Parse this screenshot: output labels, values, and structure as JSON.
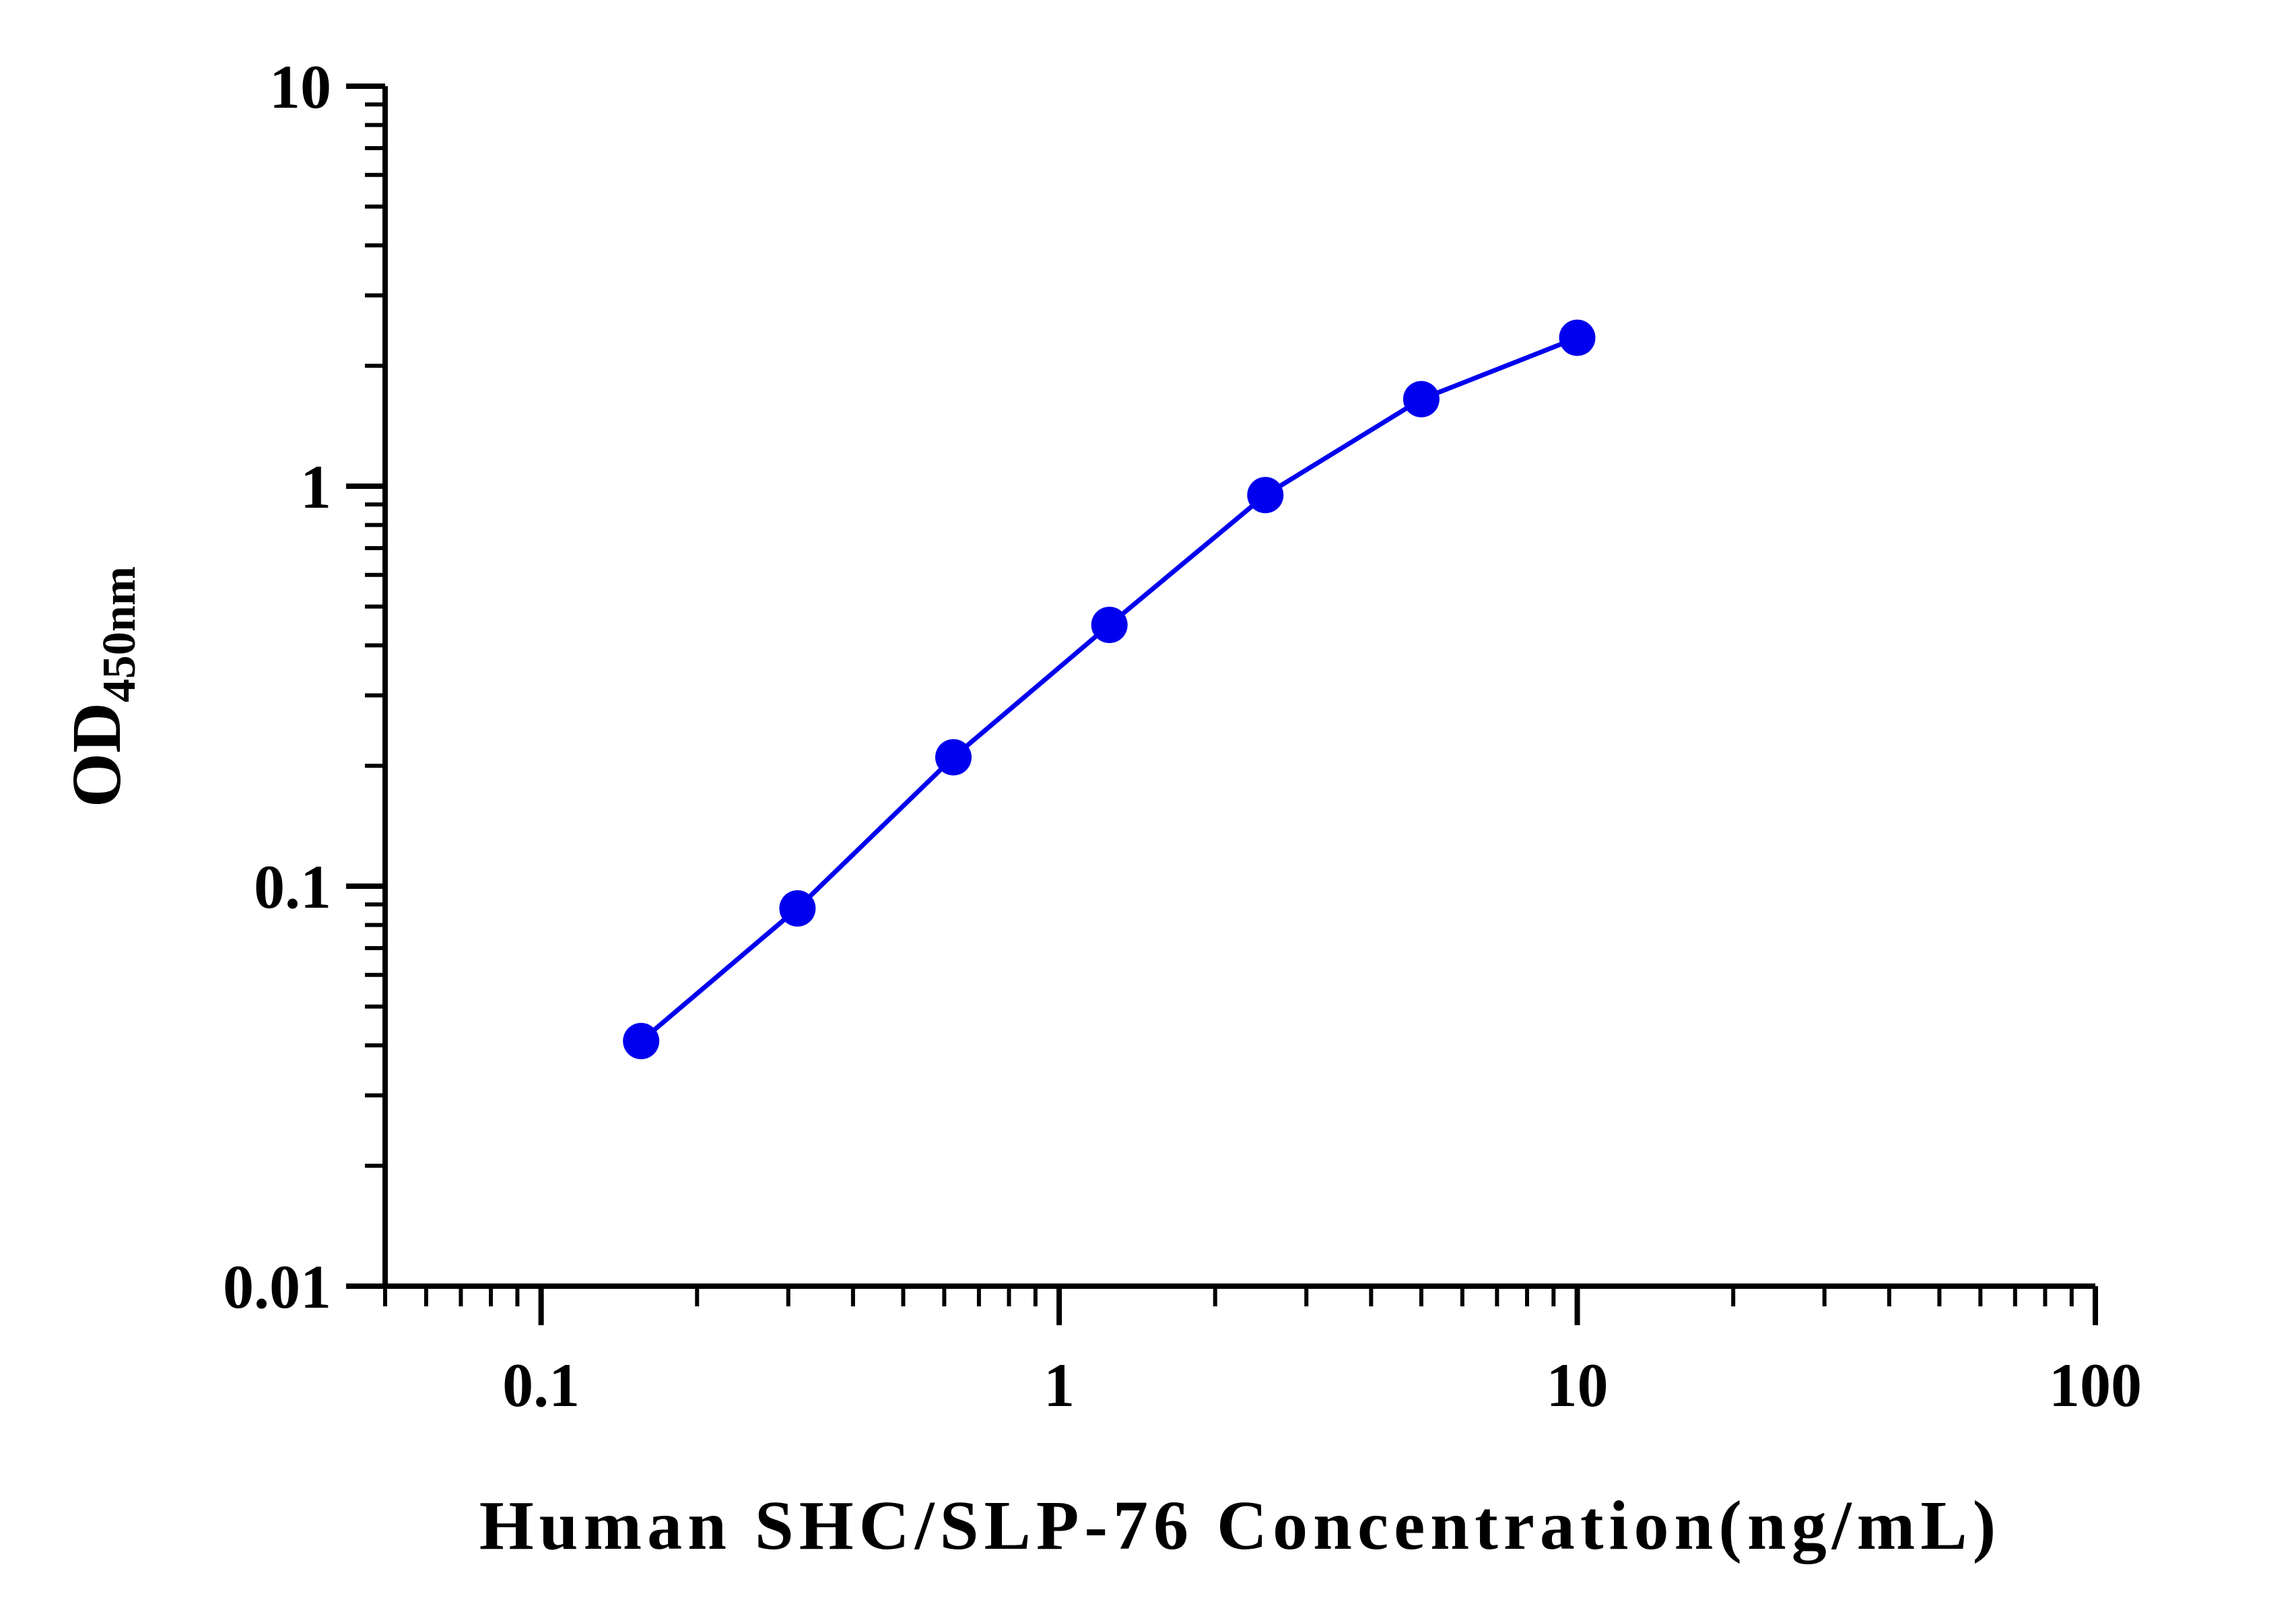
{
  "chart_data": {
    "type": "line",
    "title": "",
    "xlabel": "Human SHC/SLP-76 Concentration(ng/mL)",
    "ylabel": {
      "main": "OD",
      "subscript": "450nm"
    },
    "x_scale": "log",
    "y_scale": "log",
    "xlim": [
      0.05,
      100
    ],
    "ylim": [
      0.01,
      10
    ],
    "x_ticks": [
      {
        "value": 0.1,
        "label": "0.1"
      },
      {
        "value": 1,
        "label": "1"
      },
      {
        "value": 10,
        "label": "10"
      },
      {
        "value": 100,
        "label": "100"
      }
    ],
    "y_ticks": [
      {
        "value": 0.01,
        "label": "0.01"
      },
      {
        "value": 0.1,
        "label": "0.1"
      },
      {
        "value": 1,
        "label": "1"
      },
      {
        "value": 10,
        "label": "10"
      }
    ],
    "grid": false,
    "legend": "none",
    "series": [
      {
        "color": "#0000ee",
        "marker": "circle",
        "x": [
          0.156,
          0.3125,
          0.625,
          1.25,
          2.5,
          5,
          10
        ],
        "y": [
          0.041,
          0.088,
          0.21,
          0.45,
          0.95,
          1.65,
          2.35
        ]
      }
    ]
  }
}
